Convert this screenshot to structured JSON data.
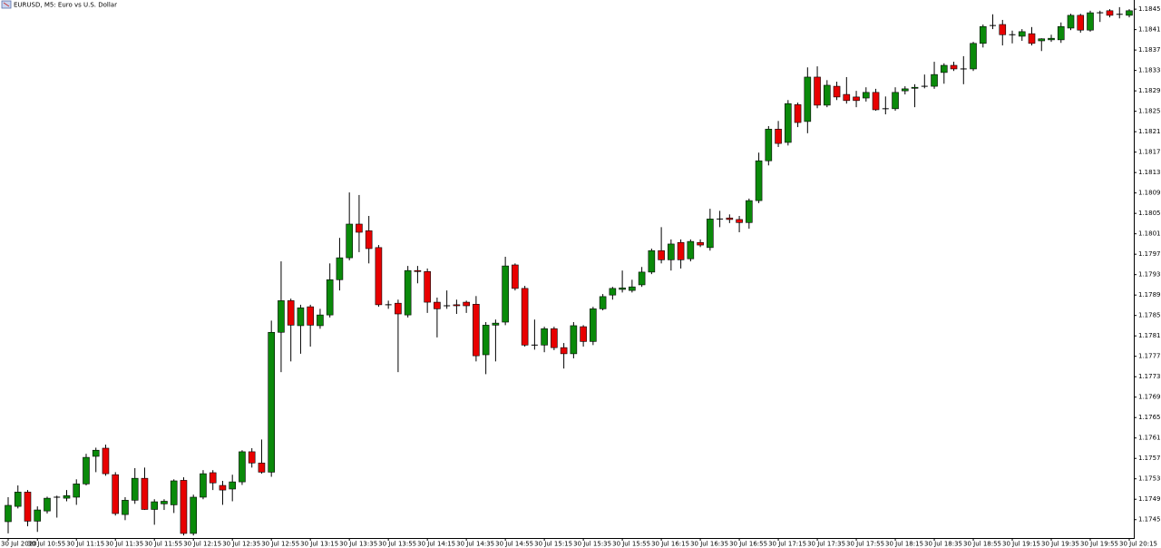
{
  "chart_data": {
    "type": "candlestick",
    "title": "EURUSD, M5:  Euro vs U.S. Dollar",
    "categories": [
      "30 Jul 2020",
      null,
      null,
      "30 Jul 10:55",
      null,
      null,
      null,
      "30 Jul 11:15",
      null,
      null,
      null,
      "30 Jul 11:35",
      null,
      null,
      null,
      "30 Jul 11:55",
      null,
      null,
      null,
      "30 Jul 12:15",
      null,
      null,
      null,
      "30 Jul 12:35",
      null,
      null,
      null,
      "30 Jul 12:55",
      null,
      null,
      null,
      "30 Jul 13:15",
      null,
      null,
      null,
      "30 Jul 13:35",
      null,
      null,
      null,
      "30 Jul 13:55",
      null,
      null,
      null,
      "30 Jul 14:15",
      null,
      null,
      null,
      "30 Jul 14:35",
      null,
      null,
      null,
      "30 Jul 14:55",
      null,
      null,
      null,
      "30 Jul 15:15",
      null,
      null,
      null,
      "30 Jul 15:35",
      null,
      null,
      null,
      "30 Jul 15:55",
      null,
      null,
      null,
      "30 Jul 16:15",
      null,
      null,
      null,
      "30 Jul 16:35",
      null,
      null,
      null,
      "30 Jul 16:55",
      null,
      null,
      null,
      "30 Jul 17:15",
      null,
      null,
      null,
      "30 Jul 17:35",
      null,
      null,
      null,
      "30 Jul 17:55",
      null,
      null,
      null,
      "30 Jul 18:15",
      null,
      null,
      null,
      "30 Jul 18:35",
      null,
      null,
      null,
      "30 Jul 18:55",
      null,
      null,
      null,
      "30 Jul 19:15",
      null,
      null,
      null,
      "30 Jul 19:35",
      null,
      null,
      null,
      "30 Jul 19:55",
      null,
      null,
      null,
      "30 Jul 20:15"
    ],
    "open": [
      1.17446,
      1.17476,
      1.17504,
      1.17447,
      1.17467,
      1.17494,
      1.17492,
      1.17494,
      1.1752,
      1.17574,
      1.1759,
      1.17538,
      1.1746,
      1.17488,
      1.17531,
      1.1747,
      1.17481,
      1.17479,
      1.17527,
      1.17423,
      1.17494,
      1.17542,
      1.17517,
      1.1751,
      1.17524,
      1.17583,
      1.17561,
      1.17543,
      1.17817,
      1.17879,
      1.1783,
      1.17867,
      1.1783,
      1.17851,
      1.1792,
      1.17963,
      1.18029,
      1.18016,
      1.17983,
      1.17871,
      1.17874,
      1.17851,
      1.17938,
      1.17936,
      1.17876,
      1.17869,
      1.17871,
      1.17876,
      1.17872,
      1.17773,
      1.17831,
      1.17837,
      1.17949,
      1.17903,
      1.17792,
      1.17792,
      1.17824,
      1.17787,
      1.17775,
      1.17828,
      1.17799,
      1.17863,
      1.1789,
      1.17901,
      1.17899,
      1.1791,
      1.17935,
      1.17977,
      1.17959,
      1.17993,
      1.17961,
      1.17993,
      1.17983,
      1.18039,
      1.18041,
      1.18038,
      1.18032,
      1.18075,
      1.18153,
      1.18215,
      1.18189,
      1.18263,
      1.1823,
      1.18317,
      1.18262,
      1.18299,
      1.18283,
      1.18278,
      1.18276,
      1.18287,
      1.18255,
      1.18255,
      1.1829,
      1.18295,
      1.18299,
      1.18299,
      1.18326,
      1.1834,
      1.18333,
      1.18333,
      1.18383,
      1.18418,
      1.1842,
      1.184,
      1.18397,
      1.18402,
      1.18388,
      1.1839,
      1.1839,
      1.18413,
      1.18438,
      1.18409,
      1.18443,
      1.18447,
      1.1844,
      1.18438
    ],
    "high": [
      1.17494,
      1.17517,
      1.17508,
      1.17476,
      1.17495,
      1.17497,
      1.17508,
      1.17529,
      1.17579,
      1.17591,
      1.17597,
      1.17543,
      1.17494,
      1.17551,
      1.17552,
      1.1749,
      1.1749,
      1.17529,
      1.17533,
      1.17499,
      1.17547,
      1.17547,
      1.17526,
      1.17538,
      1.17586,
      1.1759,
      1.17607,
      1.1784,
      1.17956,
      1.17883,
      1.17871,
      1.17871,
      1.17863,
      1.17952,
      1.18002,
      1.18091,
      1.18086,
      1.18045,
      1.17988,
      1.17879,
      1.17881,
      1.17947,
      1.17947,
      1.17942,
      1.17885,
      1.17899,
      1.17881,
      1.17879,
      1.17888,
      1.17837,
      1.17842,
      1.17965,
      1.17952,
      1.17908,
      1.17842,
      1.17828,
      1.17828,
      1.17796,
      1.17837,
      1.17831,
      1.17867,
      1.17892,
      1.17906,
      1.17938,
      1.1792,
      1.17945,
      1.17981,
      1.18023,
      1.17999,
      1.17999,
      1.17999,
      1.17999,
      1.18059,
      1.18055,
      1.18048,
      1.18045,
      1.18079,
      1.18169,
      1.18221,
      1.18231,
      1.18272,
      1.18267,
      1.18336,
      1.18338,
      1.18311,
      1.18308,
      1.18317,
      1.1829,
      1.18297,
      1.18294,
      1.18279,
      1.18297,
      1.18299,
      1.18303,
      1.18322,
      1.18347,
      1.18344,
      1.18347,
      1.18358,
      1.18386,
      1.1842,
      1.1844,
      1.18429,
      1.18408,
      1.18411,
      1.18415,
      1.18393,
      1.184,
      1.18424,
      1.18441,
      1.18441,
      1.18447,
      1.18447,
      1.1845,
      1.18454,
      1.1845
    ],
    "low": [
      1.17423,
      1.17472,
      1.17437,
      1.17426,
      1.17462,
      1.17454,
      1.17486,
      1.17479,
      1.17517,
      1.17543,
      1.17536,
      1.17458,
      1.17449,
      1.17481,
      1.17469,
      1.1744,
      1.17469,
      1.17463,
      1.17419,
      1.17419,
      1.1749,
      1.17508,
      1.17479,
      1.17486,
      1.17518,
      1.17552,
      1.1754,
      1.17534,
      1.17739,
      1.1776,
      1.17775,
      1.17789,
      1.17824,
      1.17846,
      1.17899,
      1.17958,
      1.17974,
      1.17952,
      1.17867,
      1.17863,
      1.17739,
      1.17846,
      1.17913,
      1.17855,
      1.17807,
      1.17863,
      1.17853,
      1.17855,
      1.1776,
      1.17735,
      1.1776,
      1.17831,
      1.17899,
      1.17789,
      1.17783,
      1.17778,
      1.17782,
      1.17746,
      1.17766,
      1.17789,
      1.17792,
      1.1786,
      1.17881,
      1.17895,
      1.17895,
      1.17906,
      1.17931,
      1.17952,
      1.17938,
      1.17942,
      1.17956,
      1.17984,
      1.17977,
      1.18023,
      1.18031,
      1.18013,
      1.1802,
      1.1807,
      1.18144,
      1.1818,
      1.18183,
      1.18219,
      1.18207,
      1.18256,
      1.18258,
      1.18272,
      1.18265,
      1.18258,
      1.18269,
      1.18251,
      1.18244,
      1.18251,
      1.18283,
      1.18258,
      1.18295,
      1.18294,
      1.18304,
      1.18329,
      1.18303,
      1.18329,
      1.18375,
      1.18411,
      1.18379,
      1.18383,
      1.18388,
      1.18379,
      1.18368,
      1.18386,
      1.18384,
      1.18409,
      1.18404,
      1.18406,
      1.18425,
      1.18434,
      1.18432,
      1.18434
    ],
    "close": [
      1.17478,
      1.17504,
      1.17447,
      1.17469,
      1.17492,
      1.17494,
      1.17497,
      1.1752,
      1.17572,
      1.17586,
      1.1754,
      1.17462,
      1.17488,
      1.17531,
      1.1747,
      1.17485,
      1.17486,
      1.17526,
      1.17423,
      1.17494,
      1.1754,
      1.17522,
      1.17508,
      1.17524,
      1.17583,
      1.17561,
      1.17543,
      1.17817,
      1.17879,
      1.17831,
      1.17865,
      1.17831,
      1.17851,
      1.1792,
      1.17963,
      1.18029,
      1.18013,
      1.17981,
      1.17871,
      1.17871,
      1.17853,
      1.17938,
      1.17936,
      1.17876,
      1.17863,
      1.17869,
      1.17869,
      1.17869,
      1.17771,
      1.17831,
      1.17835,
      1.17947,
      1.17903,
      1.17792,
      1.17792,
      1.17824,
      1.17787,
      1.17775,
      1.1783,
      1.17799,
      1.17863,
      1.17887,
      1.17903,
      1.17904,
      1.17906,
      1.17935,
      1.17977,
      1.17959,
      1.1799,
      1.17959,
      1.17995,
      1.17988,
      1.18039,
      1.18039,
      1.18038,
      1.18032,
      1.18075,
      1.18153,
      1.18215,
      1.18187,
      1.18265,
      1.18228,
      1.18317,
      1.18262,
      1.18301,
      1.18278,
      1.18271,
      1.18271,
      1.18287,
      1.18253,
      1.18255,
      1.18287,
      1.18294,
      1.18297,
      1.18299,
      1.18322,
      1.1834,
      1.18333,
      1.18333,
      1.18383,
      1.18416,
      1.18418,
      1.184,
      1.184,
      1.18406,
      1.18383,
      1.18392,
      1.18393,
      1.18416,
      1.18438,
      1.18409,
      1.18443,
      1.18443,
      1.18438,
      1.1844,
      1.18447
    ],
    "up_color": "#0a8a0a",
    "down_color": "#e80000",
    "ylim": [
      1.17414,
      1.18468
    ],
    "yticks": [
      {
        "value": 1.1845,
        "label": "1.18450"
      },
      {
        "value": 1.1841,
        "label": "1.18410"
      },
      {
        "value": 1.1837,
        "label": "1.18370"
      },
      {
        "value": 1.1833,
        "label": "1.18330"
      },
      {
        "value": 1.1829,
        "label": "1.18290"
      },
      {
        "value": 1.1825,
        "label": "1.18250"
      },
      {
        "value": 1.1821,
        "label": "1.18210"
      },
      {
        "value": 1.1817,
        "label": "1.18170"
      },
      {
        "value": 1.1813,
        "label": "1.18130"
      },
      {
        "value": 1.1809,
        "label": "1.18090"
      },
      {
        "value": 1.1805,
        "label": "1.18050"
      },
      {
        "value": 1.1801,
        "label": "1.18010"
      },
      {
        "value": 1.1797,
        "label": "1.17970"
      },
      {
        "value": 1.1793,
        "label": "1.17930"
      },
      {
        "value": 1.1789,
        "label": "1.17890"
      },
      {
        "value": 1.1785,
        "label": "1.17850"
      },
      {
        "value": 1.1781,
        "label": "1.17810"
      },
      {
        "value": 1.1777,
        "label": "1.17770"
      },
      {
        "value": 1.1773,
        "label": "1.17730"
      },
      {
        "value": 1.1769,
        "label": "1.17690"
      },
      {
        "value": 1.1765,
        "label": "1.17650"
      },
      {
        "value": 1.1761,
        "label": "1.17610"
      },
      {
        "value": 1.1757,
        "label": "1.17570"
      },
      {
        "value": 1.1753,
        "label": "1.17530"
      },
      {
        "value": 1.1749,
        "label": "1.17490"
      },
      {
        "value": 1.1745,
        "label": "1.17450"
      }
    ]
  }
}
